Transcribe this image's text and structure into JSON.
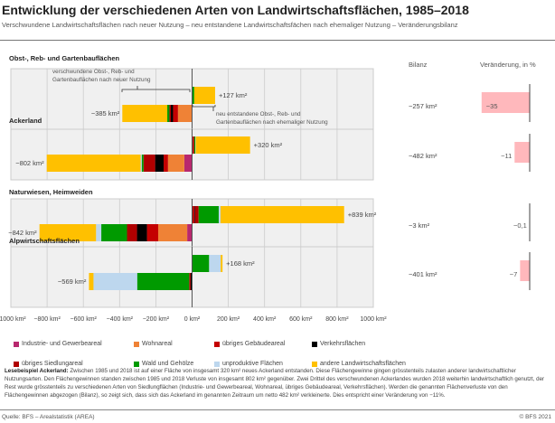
{
  "header": {
    "title": "Entwicklung der verschiedenen Arten von Landwirtschaftsflächen, 1985–2018",
    "subtitle": "Verschwundene Landwirtschaftsflächen nach neuer Nutzung – neu entstandene Landwirtschaftsfächen nach ehemaliger Nutzung –  Veränderungsbilanz"
  },
  "columns": {
    "bilanz": "Bilanz",
    "veraenderung": "Veränderung, in %"
  },
  "annotations": {
    "loss_line1": "verschwundene Obst-, Reb- und",
    "loss_line2": "Gartenbauflächen nach neuer Nutzung",
    "gain_line1": "neu entstandene Obst-, Reb- und",
    "gain_line2": "Gartenbauflächen nach ehemaliger Nutzung"
  },
  "chart_data": {
    "type": "bar",
    "orientation": "horizontal-diverging-stacked",
    "xlim": [
      -1000,
      1000
    ],
    "unit": "km²",
    "grid": true,
    "x_ticks": [
      "−1000 km²",
      "−800 km²",
      "−600 km²",
      "−400 km²",
      "−200 km²",
      "0 km²",
      "200 km²",
      "400 km²",
      "600 km²",
      "800 km²",
      "1000 km²"
    ],
    "x_tick_values": [
      -1000,
      -800,
      -600,
      -400,
      -200,
      0,
      200,
      400,
      600,
      800,
      1000
    ],
    "categories_legend": [
      {
        "key": "industrie",
        "name": "Industrie- und Gewerbeareal",
        "color": "#b8286e"
      },
      {
        "key": "wohn",
        "name": "Wohnareal",
        "color": "#ef8236"
      },
      {
        "key": "gebaeude",
        "name": "übriges Gebäudeareal",
        "color": "#c40000"
      },
      {
        "key": "verkehr",
        "name": "Verkehrsflächen",
        "color": "#000000"
      },
      {
        "key": "siedlung",
        "name": "übriges Siedlungareal",
        "color": "#b00000"
      },
      {
        "key": "wald",
        "name": "Wald und Gehölze",
        "color": "#009a00"
      },
      {
        "key": "unprod",
        "name": "unproduktive Flächen",
        "color": "#bdd7ee"
      },
      {
        "key": "andere",
        "name": "andere Landwirtschaftsflächen",
        "color": "#ffc000"
      }
    ],
    "series_order": [
      "industrie",
      "wohn",
      "gebaeude",
      "verkehr",
      "siedlung",
      "wald",
      "unprod",
      "andere"
    ],
    "groups": [
      {
        "name": "Obst-, Reb- und Gartenbauflächen",
        "loss": [
          0,
          78,
          27,
          12,
          8,
          12,
          0,
          248
        ],
        "loss_label": "−385 km²",
        "gain": [
          0,
          0,
          0,
          0,
          0,
          12,
          0,
          115
        ],
        "gain_label": "+127 km²",
        "bilanz": "−257 km²",
        "pct": -35,
        "pct_label": "−35"
      },
      {
        "name": "Ackerland",
        "loss": [
          43,
          90,
          24,
          47,
          64,
          10,
          6,
          518
        ],
        "loss_label": "−802 km²",
        "gain": [
          2,
          0,
          4,
          0,
          6,
          6,
          2,
          300
        ],
        "gain_label": "+320 km²",
        "bilanz": "−482 km²",
        "pct": -11,
        "pct_label": "−11"
      },
      {
        "name": "Naturwiesen, Heimweiden",
        "loss": [
          27,
          160,
          62,
          55,
          55,
          142,
          29,
          312
        ],
        "loss_label": "−842 km²",
        "gain": [
          0,
          0,
          12,
          4,
          20,
          111,
          10,
          682
        ],
        "gain_label": "+839 km²",
        "bilanz": "−3 km²",
        "pct": -0.1,
        "pct_label": "−0,1"
      },
      {
        "name": "Alpwirtschaftsflächen",
        "loss": [
          0,
          0,
          0,
          8,
          8,
          287,
          241,
          25
        ],
        "loss_label": "−569 km²",
        "gain": [
          0,
          0,
          0,
          0,
          0,
          94,
          64,
          10
        ],
        "gain_label": "+168 km²",
        "bilanz": "−401 km²",
        "pct": -7,
        "pct_label": "−7"
      }
    ],
    "pct_bar_color": "#ffb8bc"
  },
  "reading_example": {
    "label": "Lesebeispiel Ackerland:",
    "text": "Zwischen 1985 und 2018 ist auf einer Fläche von insgesamt 320 km² neues Ackerland entstanden. Diese Flächengewinne gingen grösstenteils zulasten anderer landwirtschaftlicher Nutzungsarten. Den Flächengewinnen standen zwischen 1985 und 2018 Verluste von insgesamt 802 km² gegenüber. Zwei Drittel des verschwundenen Ackerlandes wurden 2018 weiterhin landwirtschaftlich genutzt, der Rest wurde grösstenteils zu verschiedenen Arten von Siedlungflächen (Industrie- und Gewerbeareal, Wohnareal, übriges Gebäudeareal, Verkehrsflächen). Werden die genannten Flächenverluste von den Flächengewinnen abgezogen (Bilanz), so zeigt sich, dass sich das Ackerland im genannten Zeitraum um netto 482 km² verkleinerte. Dies entspricht einer Veränderung von  −11%."
  },
  "footer": {
    "source": "Quelle: BFS – Arealstatistik (AREA)",
    "copyright": "© BFS 2021"
  }
}
